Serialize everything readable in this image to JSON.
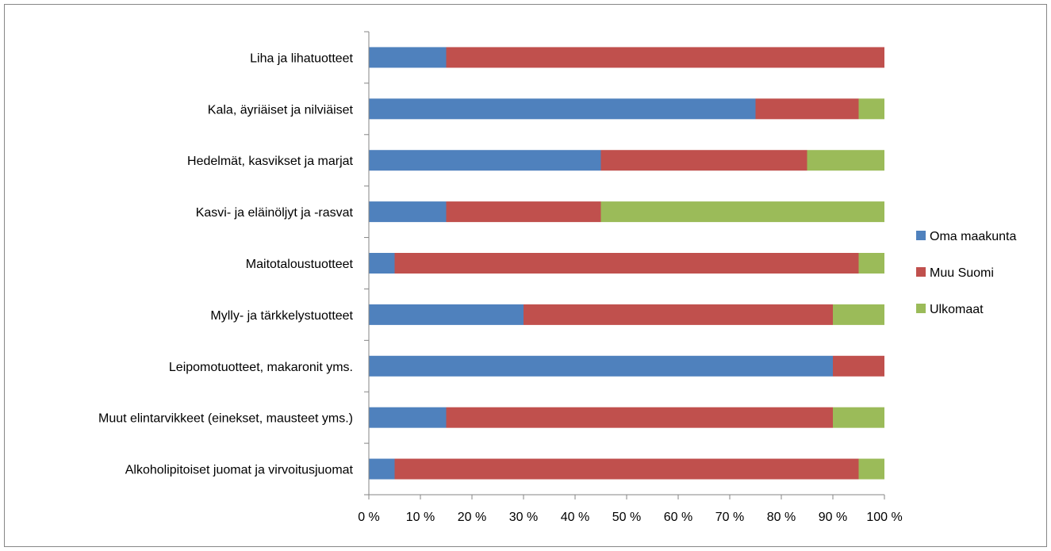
{
  "chart_data": {
    "type": "bar",
    "orientation": "horizontal",
    "stacked": "percent",
    "categories": [
      "Liha ja lihatuotteet",
      "Kala, äyriäiset ja nilviäiset",
      "Hedelmät, kasvikset ja marjat",
      "Kasvi- ja eläinöljyt ja -rasvat",
      "Maitotaloustuotteet",
      "Mylly- ja tärkkelystuotteet",
      "Leipomotuotteet, makaronit yms.",
      "Muut elintarvikkeet (einekset, mausteet yms.)",
      "Alkoholipitoiset juomat ja virvoitusjuomat"
    ],
    "series": [
      {
        "name": "Oma maakunta",
        "color": "#4f81bd",
        "values": [
          15,
          75,
          45,
          15,
          5,
          30,
          90,
          15,
          5
        ]
      },
      {
        "name": "Muu Suomi",
        "color": "#c0504d",
        "values": [
          85,
          20,
          40,
          30,
          90,
          60,
          10,
          75,
          90
        ]
      },
      {
        "name": "Ulkomaat",
        "color": "#9bbb59",
        "values": [
          0,
          5,
          15,
          55,
          5,
          10,
          0,
          10,
          5
        ]
      }
    ],
    "x_ticks": [
      "0 %",
      "10 %",
      "20 %",
      "30 %",
      "40 %",
      "50 %",
      "60 %",
      "70 %",
      "80 %",
      "90 %",
      "100 %"
    ],
    "xlim": [
      0,
      100
    ],
    "grid": false,
    "legend_position": "right",
    "title": "",
    "xlabel": "",
    "ylabel": ""
  }
}
